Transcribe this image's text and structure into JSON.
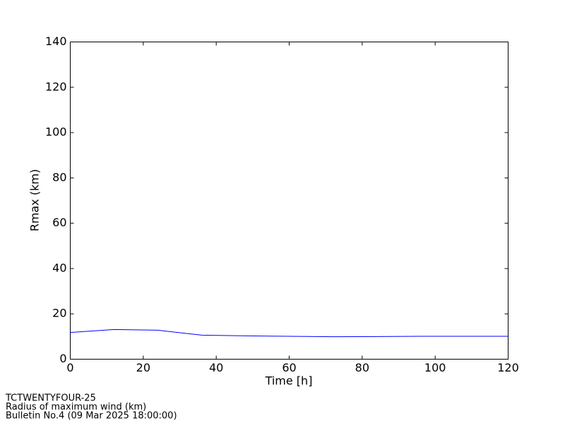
{
  "chart_data": {
    "type": "line",
    "xlabel": "Time [h]",
    "ylabel": "Rmax (km)",
    "x": [
      0,
      12,
      24,
      36,
      48,
      60,
      72,
      84,
      96,
      108,
      120
    ],
    "series": [
      {
        "color": "#0000ff",
        "values": [
          11.8,
          13.1,
          12.8,
          10.6,
          10.3,
          10.1,
          9.9,
          10.0,
          10.1,
          10.1,
          10.1
        ]
      }
    ],
    "xlim": [
      0,
      120
    ],
    "xticks": [
      0,
      20,
      40,
      60,
      80,
      100,
      120
    ],
    "ylim": [
      0,
      140
    ],
    "yticks": [
      0,
      20,
      40,
      60,
      80,
      100,
      120,
      140
    ],
    "grid": false,
    "footer": [
      "TCTWENTYFOUR-25",
      "Radius of maximum wind (km)",
      "Bulletin No.4 (09 Mar 2025  18:00:00)"
    ]
  }
}
